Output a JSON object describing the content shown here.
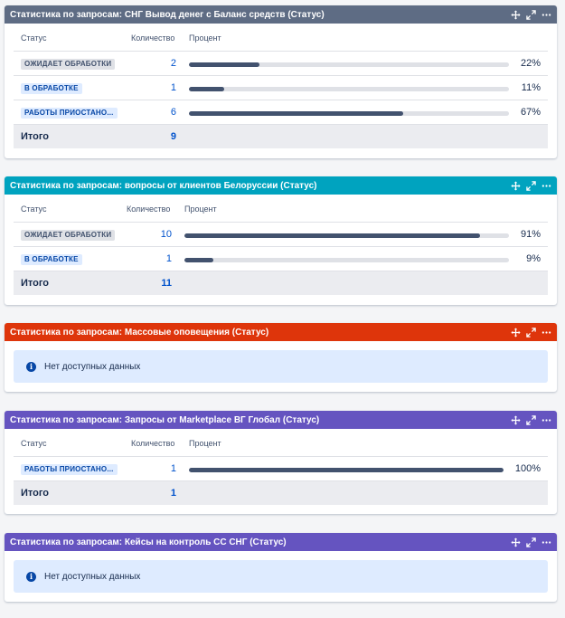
{
  "gadgets": [
    {
      "title": "Статистика по запросам: СНГ Вывод денег с Баланс средств (Статус)",
      "color": "#5e6c84",
      "columns": {
        "status": "Статус",
        "count": "Количество",
        "percent": "Процент"
      },
      "rows": [
        {
          "status": "ОЖИДАЕТ ОБРАБОТКИ",
          "count": "2",
          "percent": "22%",
          "fraction": 0.22
        },
        {
          "status": "В ОБРАБОТКЕ",
          "count": "1",
          "percent": "11%",
          "fraction": 0.11
        },
        {
          "status": "РАБОТЫ ПРИОСТАНО...",
          "count": "6",
          "percent": "67%",
          "fraction": 0.67
        }
      ],
      "total_label": "Итого",
      "total": "9"
    },
    {
      "title": "Статистика по запросам: вопросы от клиентов Белоруссии (Статус)",
      "color": "#00a3bf",
      "columns": {
        "status": "Статус",
        "count": "Количество",
        "percent": "Процент"
      },
      "rows": [
        {
          "status": "ОЖИДАЕТ ОБРАБОТКИ",
          "count": "10",
          "percent": "91%",
          "fraction": 0.91
        },
        {
          "status": "В ОБРАБОТКЕ",
          "count": "1",
          "percent": "9%",
          "fraction": 0.09
        }
      ],
      "total_label": "Итого",
      "total": "11"
    },
    {
      "title": "Статистика по запросам: Массовые оповещения (Статус)",
      "color": "#de350b",
      "no_data": "Нет доступных данных"
    },
    {
      "title": "Статистика по запросам: Запросы от Marketplace ВГ Глобал (Статус)",
      "color": "#6554c0",
      "columns": {
        "status": "Статус",
        "count": "Количество",
        "percent": "Процент"
      },
      "rows": [
        {
          "status": "РАБОТЫ ПРИОСТАНО...",
          "count": "1",
          "percent": "100%",
          "fraction": 1.0
        }
      ],
      "total_label": "Итого",
      "total": "1"
    },
    {
      "title": "Статистика по запросам: Кейсы на контроль СС СНГ (Статус)",
      "color": "#6554c0",
      "no_data": "Нет доступных данных"
    }
  ],
  "icons": {
    "move": "move-icon",
    "expand": "expand-icon",
    "menu": "more-icon"
  }
}
